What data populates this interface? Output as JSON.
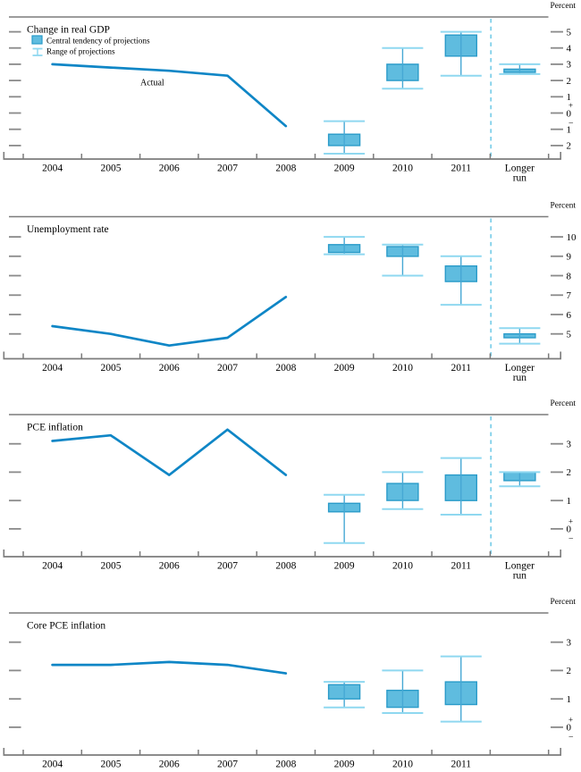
{
  "figure": {
    "unit_label": "Percent",
    "legend": {
      "central_tendency_label": "Central tendency of projections",
      "range_label": "Range of projections"
    },
    "actual_label": "Actual"
  },
  "colors": {
    "axis": "#7b7b7b",
    "tick_dash": "#8a8a8a",
    "actual_line": "#0f86c6",
    "box_fill": "#5fbcdf",
    "box_edge": "#2a9bc9",
    "range_cap": "#8fd8f0",
    "range_mid": "#46a8d4",
    "divider": "#7fcfe9",
    "text": "#000000"
  },
  "chart_data": [
    {
      "type": "line+box-whisker",
      "title": "Change in real GDP",
      "unit_label": "Percent",
      "actual_label": "Actual",
      "legend": true,
      "x_labels": [
        "2004",
        "2005",
        "2006",
        "2007",
        "2008",
        "2009",
        "2010",
        "2011",
        "Longer run"
      ],
      "actual": {
        "years": [
          2004,
          2005,
          2006,
          2007,
          2008
        ],
        "values": [
          3.0,
          2.8,
          2.6,
          2.3,
          -0.8
        ]
      },
      "projections": [
        {
          "period": "2009",
          "central_tendency": [
            -2.0,
            -1.3
          ],
          "range": [
            -2.5,
            -0.5
          ]
        },
        {
          "period": "2010",
          "central_tendency": [
            2.0,
            3.0
          ],
          "range": [
            1.5,
            4.0
          ]
        },
        {
          "period": "2011",
          "central_tendency": [
            3.5,
            4.8
          ],
          "range": [
            2.3,
            5.0
          ]
        },
        {
          "period": "Longer run",
          "central_tendency": [
            2.5,
            2.7
          ],
          "range": [
            2.4,
            3.0
          ]
        }
      ],
      "y_ticks": [
        5,
        4,
        3,
        2,
        1,
        0,
        -1,
        -2
      ],
      "ylim": [
        -2.83,
        5.91
      ],
      "zero_sign": true,
      "divider": true,
      "has_longer_run": true
    },
    {
      "type": "line+box-whisker",
      "title": "Unemployment rate",
      "unit_label": "Percent",
      "legend": false,
      "x_labels": [
        "2004",
        "2005",
        "2006",
        "2007",
        "2008",
        "2009",
        "2010",
        "2011",
        "Longer run"
      ],
      "actual": {
        "years": [
          2004,
          2005,
          2006,
          2007,
          2008
        ],
        "values": [
          5.4,
          5.0,
          4.4,
          4.8,
          6.9
        ]
      },
      "projections": [
        {
          "period": "2009",
          "central_tendency": [
            9.2,
            9.6
          ],
          "range": [
            9.1,
            10.0
          ]
        },
        {
          "period": "2010",
          "central_tendency": [
            9.0,
            9.5
          ],
          "range": [
            8.0,
            9.6
          ]
        },
        {
          "period": "2011",
          "central_tendency": [
            7.7,
            8.5
          ],
          "range": [
            6.5,
            9.0
          ]
        },
        {
          "period": "Longer run",
          "central_tendency": [
            4.8,
            5.0
          ],
          "range": [
            4.5,
            5.3
          ]
        }
      ],
      "y_ticks": [
        10,
        9,
        8,
        7,
        6,
        5
      ],
      "ylim": [
        3.72,
        11.04
      ],
      "zero_sign": false,
      "divider": true,
      "has_longer_run": true
    },
    {
      "type": "line+box-whisker",
      "title": "PCE inflation",
      "unit_label": "Percent",
      "legend": false,
      "x_labels": [
        "2004",
        "2005",
        "2006",
        "2007",
        "2008",
        "2009",
        "2010",
        "2011",
        "Longer run"
      ],
      "actual": {
        "years": [
          2004,
          2005,
          2006,
          2007,
          2008
        ],
        "values": [
          3.1,
          3.3,
          1.9,
          3.5,
          1.9
        ]
      },
      "projections": [
        {
          "period": "2009",
          "central_tendency": [
            0.6,
            0.9
          ],
          "range": [
            -0.5,
            1.2
          ]
        },
        {
          "period": "2010",
          "central_tendency": [
            1.0,
            1.6
          ],
          "range": [
            0.7,
            2.0
          ]
        },
        {
          "period": "2011",
          "central_tendency": [
            1.0,
            1.9
          ],
          "range": [
            0.5,
            2.5
          ]
        },
        {
          "period": "Longer run",
          "central_tendency": [
            1.7,
            2.0
          ],
          "range": [
            1.5,
            2.0
          ]
        }
      ],
      "y_ticks": [
        3,
        2,
        1,
        0
      ],
      "ylim": [
        -0.98,
        4.03
      ],
      "zero_sign": true,
      "divider": true,
      "has_longer_run": true
    },
    {
      "type": "line+box-whisker",
      "title": "Core PCE inflation",
      "unit_label": "Percent",
      "legend": false,
      "x_labels": [
        "2004",
        "2005",
        "2006",
        "2007",
        "2008",
        "2009",
        "2010",
        "2011"
      ],
      "actual": {
        "years": [
          2004,
          2005,
          2006,
          2007,
          2008
        ],
        "values": [
          2.2,
          2.2,
          2.3,
          2.2,
          1.9
        ]
      },
      "projections": [
        {
          "period": "2009",
          "central_tendency": [
            1.0,
            1.5
          ],
          "range": [
            0.7,
            1.6
          ]
        },
        {
          "period": "2010",
          "central_tendency": [
            0.7,
            1.3
          ],
          "range": [
            0.5,
            2.0
          ]
        },
        {
          "period": "2011",
          "central_tendency": [
            0.8,
            1.6
          ],
          "range": [
            0.2,
            2.5
          ]
        }
      ],
      "y_ticks": [
        3,
        2,
        1,
        0
      ],
      "ylim": [
        -0.98,
        4.03
      ],
      "zero_sign": true,
      "divider": false,
      "has_longer_run": false
    }
  ]
}
